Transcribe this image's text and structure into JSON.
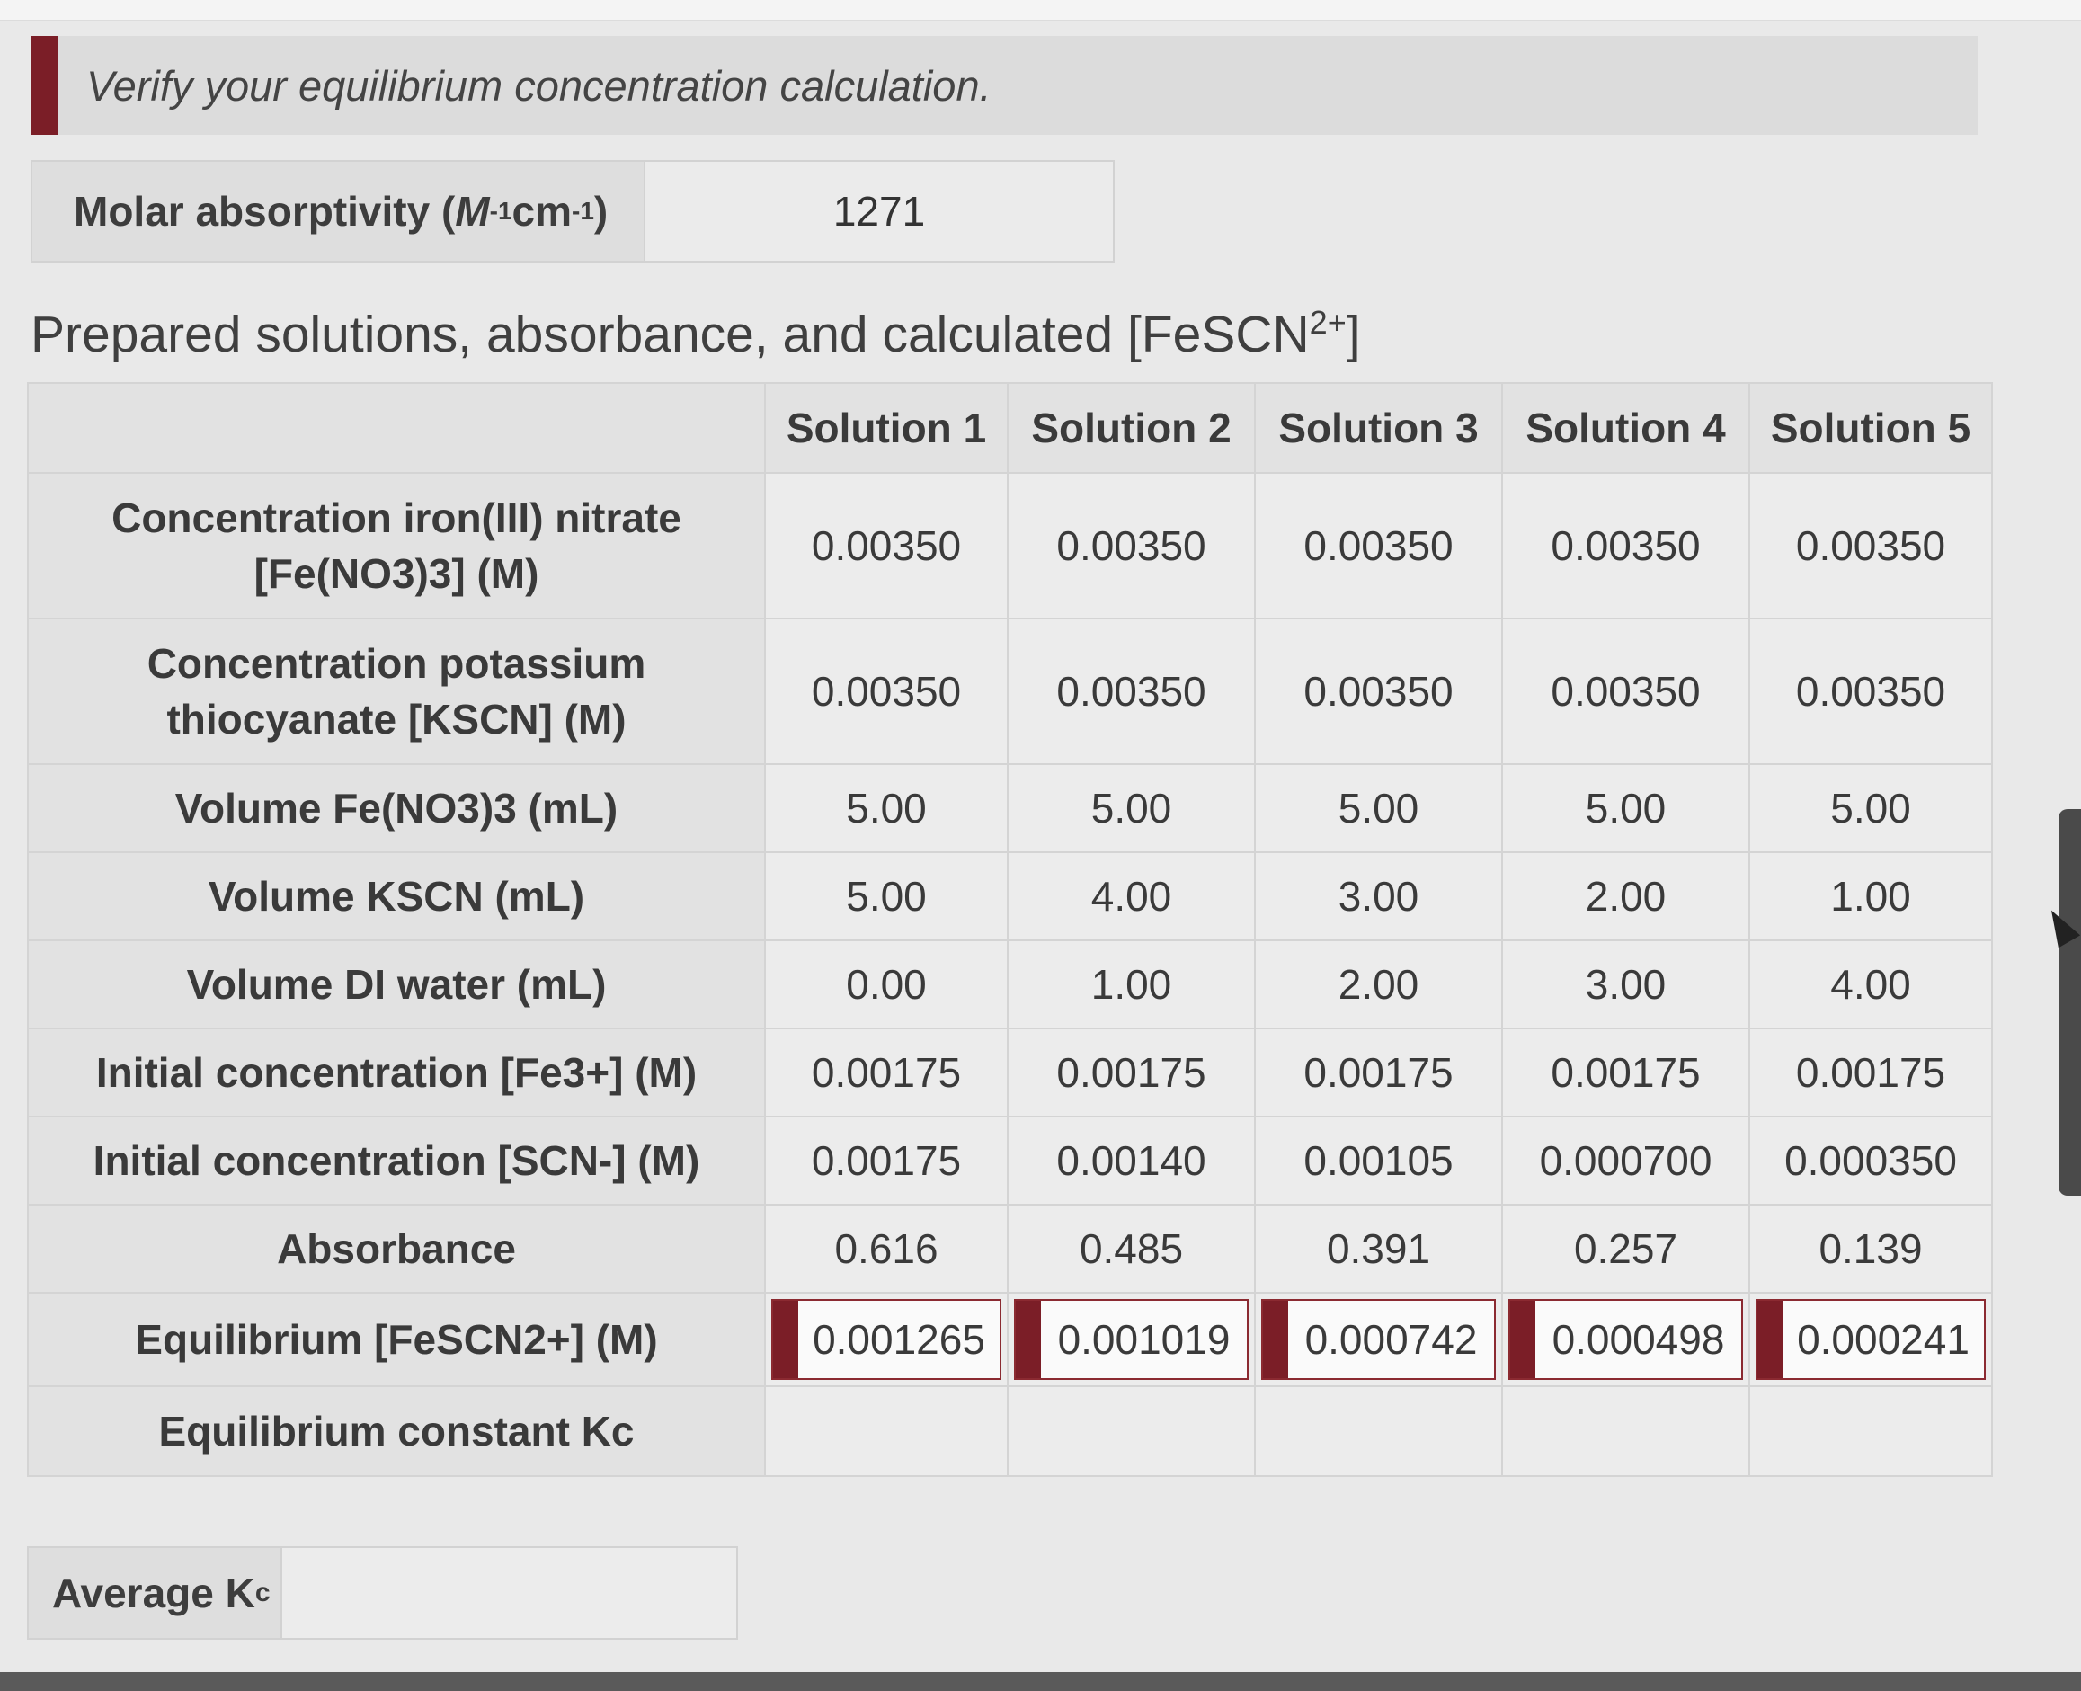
{
  "banner": {
    "text": "Verify your equilibrium concentration calculation."
  },
  "molar": {
    "label_main": "Molar absorptivity (",
    "label_unit": "M",
    "label_exp1": "-1",
    "label_cm": "cm",
    "label_exp2": "-1",
    "label_close": ")",
    "value": "1271"
  },
  "section_title": {
    "main": "Prepared solutions, absorbance, and calculated [FeSCN",
    "sup": "2+",
    "close": "]"
  },
  "table": {
    "headers": [
      "Solution 1",
      "Solution 2",
      "Solution 3",
      "Solution 4",
      "Solution 5"
    ],
    "rows": [
      {
        "label": "Concentration iron(III) nitrate [Fe(NO3)3] (M)",
        "values": [
          "0.00350",
          "0.00350",
          "0.00350",
          "0.00350",
          "0.00350"
        ]
      },
      {
        "label": "Concentration potassium thiocyanate [KSCN] (M)",
        "values": [
          "0.00350",
          "0.00350",
          "0.00350",
          "0.00350",
          "0.00350"
        ]
      },
      {
        "label": "Volume Fe(NO3)3 (mL)",
        "values": [
          "5.00",
          "5.00",
          "5.00",
          "5.00",
          "5.00"
        ]
      },
      {
        "label": "Volume KSCN (mL)",
        "values": [
          "5.00",
          "4.00",
          "3.00",
          "2.00",
          "1.00"
        ]
      },
      {
        "label": "Volume DI water (mL)",
        "values": [
          "0.00",
          "1.00",
          "2.00",
          "3.00",
          "4.00"
        ]
      },
      {
        "label": "Initial concentration [Fe3+] (M)",
        "values": [
          "0.00175",
          "0.00175",
          "0.00175",
          "0.00175",
          "0.00175"
        ]
      },
      {
        "label": "Initial concentration [SCN-] (M)",
        "values": [
          "0.00175",
          "0.00140",
          "0.00105",
          "0.000700",
          "0.000350"
        ]
      },
      {
        "label": "Absorbance",
        "values": [
          "0.616",
          "0.485",
          "0.391",
          "0.257",
          "0.139"
        ]
      },
      {
        "label": "Equilibrium [FeSCN2+] (M)",
        "values": [
          "0.001265",
          "0.001019",
          "0.000742",
          "0.000498",
          "0.000241"
        ]
      },
      {
        "label": "Equilibrium constant Kc",
        "values": [
          "",
          "",
          "",
          "",
          ""
        ]
      }
    ]
  },
  "average": {
    "label": "Average K",
    "sub": "c",
    "value": ""
  },
  "colors": {
    "accent": "#7b1e27",
    "cell": "#ececec",
    "label_bg": "#e2e2e2"
  }
}
